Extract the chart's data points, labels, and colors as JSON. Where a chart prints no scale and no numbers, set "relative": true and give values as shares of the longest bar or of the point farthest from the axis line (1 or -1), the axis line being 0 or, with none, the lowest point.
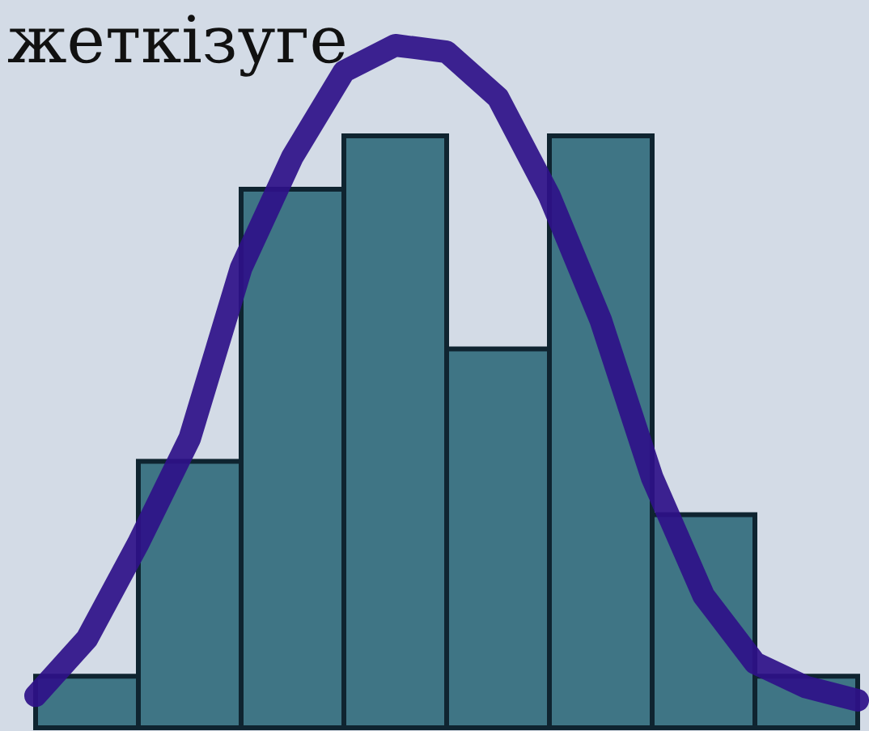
{
  "chart_data": [
    {
      "type": "bar",
      "title": "жеткізуге",
      "relative": true,
      "categories": [
        null,
        null,
        null,
        null,
        null,
        null,
        null,
        null
      ],
      "color": "#3f7585",
      "values": [
        0.087,
        0.45,
        0.91,
        1,
        0.64,
        1,
        0.36,
        0.087
      ]
    },
    {
      "type": "line",
      "relative": true,
      "categories": [
        null,
        null,
        null,
        null,
        null,
        null,
        null,
        null,
        null,
        null,
        null,
        null,
        null,
        null,
        null,
        null,
        null
      ],
      "color": "#2e1189",
      "values": [
        0.007,
        0.094,
        0.24,
        0.4,
        0.66,
        0.83,
        0.96,
        1,
        0.99,
        0.92,
        0.77,
        0.58,
        0.34,
        0.16,
        0.057,
        0.02,
        0
      ]
    }
  ]
}
